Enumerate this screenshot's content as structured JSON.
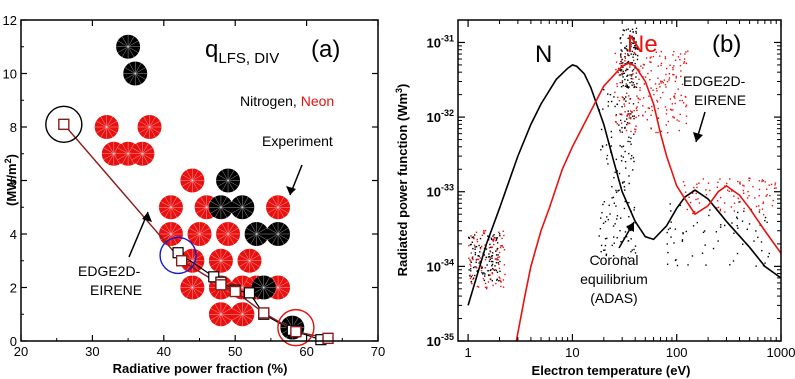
{
  "chart_data": [
    {
      "type": "scatter",
      "panel_label": "(a)",
      "title_main": "q",
      "title_sub": "LFS, DIV",
      "xlabel": "Radiative power fraction (%)",
      "ylabel": "(MW/m",
      "ylabel_sup": "2",
      "ylabel_close": ")",
      "xlim": [
        20,
        70
      ],
      "ylim": [
        0,
        12
      ],
      "xticks": [
        20,
        30,
        40,
        50,
        60,
        70
      ],
      "yticks": [
        0,
        2,
        4,
        6,
        8,
        10,
        12
      ],
      "legend_nitrogen": "Nitrogen, ",
      "legend_neon": "Neon",
      "annotation_experiment": "Experiment",
      "annotation_model_1": "EDGE2D-",
      "annotation_model_2": "EIRENE",
      "colors": {
        "nitrogen": "#000000",
        "neon": "#e8110f",
        "model_line": "#8b1a1a",
        "highlight_blue": "#1a1acc",
        "highlight_red": "#e8110f"
      },
      "experiment_nitrogen": [
        [
          35,
          11.0
        ],
        [
          36,
          10.0
        ],
        [
          49,
          6.0
        ],
        [
          48,
          5.0
        ],
        [
          51,
          5.0
        ],
        [
          53,
          4.0
        ],
        [
          56,
          4.0
        ],
        [
          54,
          2.0
        ],
        [
          58,
          0.5
        ]
      ],
      "experiment_neon": [
        [
          32,
          8.0
        ],
        [
          38,
          8.0
        ],
        [
          33,
          7.0
        ],
        [
          35,
          7.0
        ],
        [
          37,
          7.0
        ],
        [
          44,
          6.0
        ],
        [
          41,
          5.0
        ],
        [
          46,
          5.0
        ],
        [
          56,
          5.0
        ],
        [
          41,
          4.0
        ],
        [
          45,
          4.0
        ],
        [
          49,
          4.0
        ],
        [
          44,
          3.0
        ],
        [
          48,
          3.0
        ],
        [
          52,
          3.0
        ],
        [
          44,
          2.0
        ],
        [
          48,
          2.0
        ],
        [
          51,
          2.0
        ],
        [
          53,
          2.0
        ],
        [
          56,
          2.0
        ],
        [
          48,
          1.0
        ],
        [
          51,
          1.0
        ]
      ],
      "model_nitrogen": [
        [
          42,
          3.3
        ],
        [
          47,
          2.4
        ],
        [
          48,
          2.2
        ],
        [
          50,
          1.9
        ],
        [
          52,
          1.8
        ],
        [
          54,
          1.0
        ],
        [
          58,
          0.4
        ],
        [
          62,
          0.05
        ]
      ],
      "model_neon": [
        [
          26,
          8.1
        ],
        [
          42.5,
          3.0
        ],
        [
          48,
          2.1
        ],
        [
          50,
          1.85
        ],
        [
          54,
          1.05
        ],
        [
          58.5,
          0.35
        ],
        [
          63,
          0.1
        ]
      ],
      "highlighted_points": [
        {
          "color": "black",
          "x": 26,
          "y": 8.1
        },
        {
          "color": "blue",
          "x": 42,
          "y": 3.2
        },
        {
          "color": "red",
          "x": 58.5,
          "y": 0.5
        }
      ]
    },
    {
      "type": "line",
      "panel_label": "(b)",
      "xscale": "log",
      "yscale": "log",
      "xlabel": "Electron temperature (eV)",
      "ylabel": "Radiated power function (Wm",
      "ylabel_sup": "3",
      "ylabel_close": ")",
      "xlim": [
        0.8,
        1000
      ],
      "ylim": [
        1e-35,
        2e-31
      ],
      "xticks": [
        {
          "v": 1,
          "label": "1"
        },
        {
          "v": 10,
          "label": "10"
        },
        {
          "v": 100,
          "label": "100"
        },
        {
          "v": 1000,
          "label": "1000"
        }
      ],
      "yticks": [
        {
          "v": 1e-35,
          "base": "10",
          "exp": "-35"
        },
        {
          "v": 1e-34,
          "base": "10",
          "exp": "-34"
        },
        {
          "v": 1e-33,
          "base": "10",
          "exp": "-33"
        },
        {
          "v": 1e-32,
          "base": "10",
          "exp": "-32"
        },
        {
          "v": 1e-31,
          "base": "10",
          "exp": "-31"
        }
      ],
      "label_n": "N",
      "label_ne": "Ne",
      "annotation_model_1": "EDGE2D-",
      "annotation_model_2": "EIRENE",
      "annotation_coronal_1": "Coronal",
      "annotation_coronal_2": "equilibrium",
      "annotation_coronal_3": "(ADAS)",
      "series": [
        {
          "name": "N",
          "color": "#000000",
          "x": [
            1.0,
            1.5,
            2.0,
            3.0,
            4.0,
            5.0,
            7.0,
            9.0,
            10.0,
            11.0,
            13.0,
            15.0,
            20.0,
            25.0,
            30.0,
            40.0,
            50.0,
            60.0,
            80.0,
            100.0,
            120.0,
            150.0,
            200.0,
            300.0,
            500.0,
            700.0,
            1000.0
          ],
          "y": [
            3e-35,
            2e-34,
            6e-34,
            3e-33,
            8e-33,
            1.5e-32,
            3.2e-32,
            4.5e-32,
            5e-32,
            4.8e-32,
            3.8e-32,
            2.5e-32,
            8e-33,
            2.5e-33,
            1e-33,
            4e-34,
            2.5e-34,
            2.3e-34,
            3.5e-34,
            6e-34,
            8.5e-34,
            1.05e-33,
            8e-34,
            4e-34,
            1.8e-34,
            1e-34,
            7e-35
          ]
        },
        {
          "name": "Ne",
          "color": "#e8110f",
          "x": [
            2.9,
            3.5,
            4.0,
            5.0,
            6.0,
            8.0,
            10.0,
            15.0,
            20.0,
            30.0,
            35.0,
            40.0,
            50.0,
            60.0,
            70.0,
            80.0,
            100.0,
            120.0,
            150.0,
            200.0,
            250.0,
            300.0,
            400.0,
            500.0,
            700.0,
            1000.0
          ],
          "y": [
            1e-35,
            4e-35,
            1e-34,
            3e-34,
            6e-34,
            2e-33,
            4e-33,
            1.2e-32,
            2.6e-32,
            4.8e-32,
            5.3e-32,
            4.8e-32,
            3e-32,
            1.5e-32,
            6e-33,
            3e-33,
            1.2e-33,
            8e-34,
            5e-34,
            6.5e-34,
            1e-33,
            1.2e-33,
            9e-34,
            6e-34,
            3e-34,
            1.5e-34
          ]
        }
      ],
      "scatter_clouds": [
        {
          "name": "N modelled",
          "color": "#000000"
        },
        {
          "name": "Ne modelled",
          "color": "#e8110f"
        }
      ]
    }
  ]
}
